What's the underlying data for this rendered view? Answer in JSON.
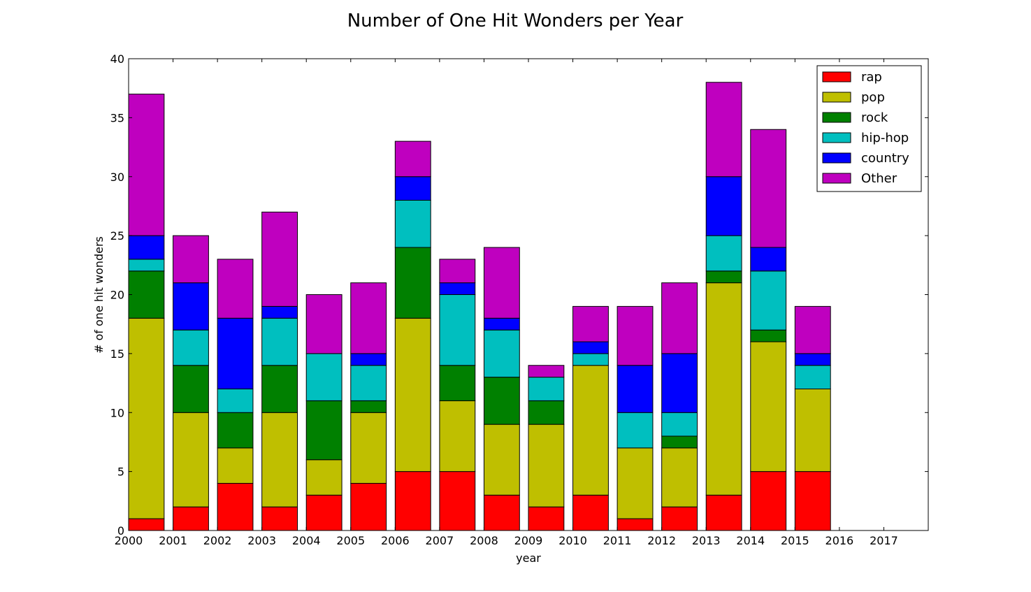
{
  "chart_data": {
    "type": "bar",
    "stacked": true,
    "title": "Number of One Hit Wonders per Year",
    "xlabel": "year",
    "ylabel": "# of one hit wonders",
    "ylim": [
      0,
      40
    ],
    "yticks": [
      "0",
      "5",
      "10",
      "15",
      "20",
      "25",
      "30",
      "35",
      "40"
    ],
    "categories": [
      "2000",
      "2001",
      "2002",
      "2003",
      "2004",
      "2005",
      "2006",
      "2007",
      "2008",
      "2009",
      "2010",
      "2011",
      "2012",
      "2013",
      "2014",
      "2015",
      "2016",
      "2017"
    ],
    "legend_position": "top-right",
    "series": [
      {
        "name": "rap",
        "color": "#ff0000",
        "values": [
          1,
          2,
          4,
          2,
          3,
          4,
          5,
          5,
          3,
          2,
          3,
          1,
          2,
          3,
          5,
          5,
          0,
          0
        ]
      },
      {
        "name": "pop",
        "color": "#bfbf00",
        "values": [
          17,
          8,
          3,
          8,
          3,
          6,
          13,
          6,
          6,
          7,
          11,
          6,
          5,
          18,
          11,
          7,
          0,
          0
        ]
      },
      {
        "name": "rock",
        "color": "#008000",
        "values": [
          4,
          4,
          3,
          4,
          5,
          1,
          6,
          3,
          4,
          2,
          0,
          0,
          1,
          1,
          1,
          0,
          0,
          0
        ]
      },
      {
        "name": "hip-hop",
        "color": "#00bfbf",
        "values": [
          1,
          3,
          2,
          4,
          4,
          3,
          4,
          6,
          4,
          2,
          1,
          3,
          2,
          3,
          5,
          2,
          0,
          0
        ]
      },
      {
        "name": "country",
        "color": "#0000ff",
        "values": [
          2,
          4,
          6,
          1,
          0,
          1,
          2,
          1,
          1,
          0,
          1,
          4,
          5,
          5,
          2,
          1,
          0,
          0
        ]
      },
      {
        "name": "Other",
        "color": "#bf00bf",
        "values": [
          12,
          4,
          5,
          8,
          5,
          6,
          3,
          2,
          6,
          1,
          3,
          5,
          6,
          8,
          10,
          4,
          0,
          0
        ]
      }
    ]
  }
}
